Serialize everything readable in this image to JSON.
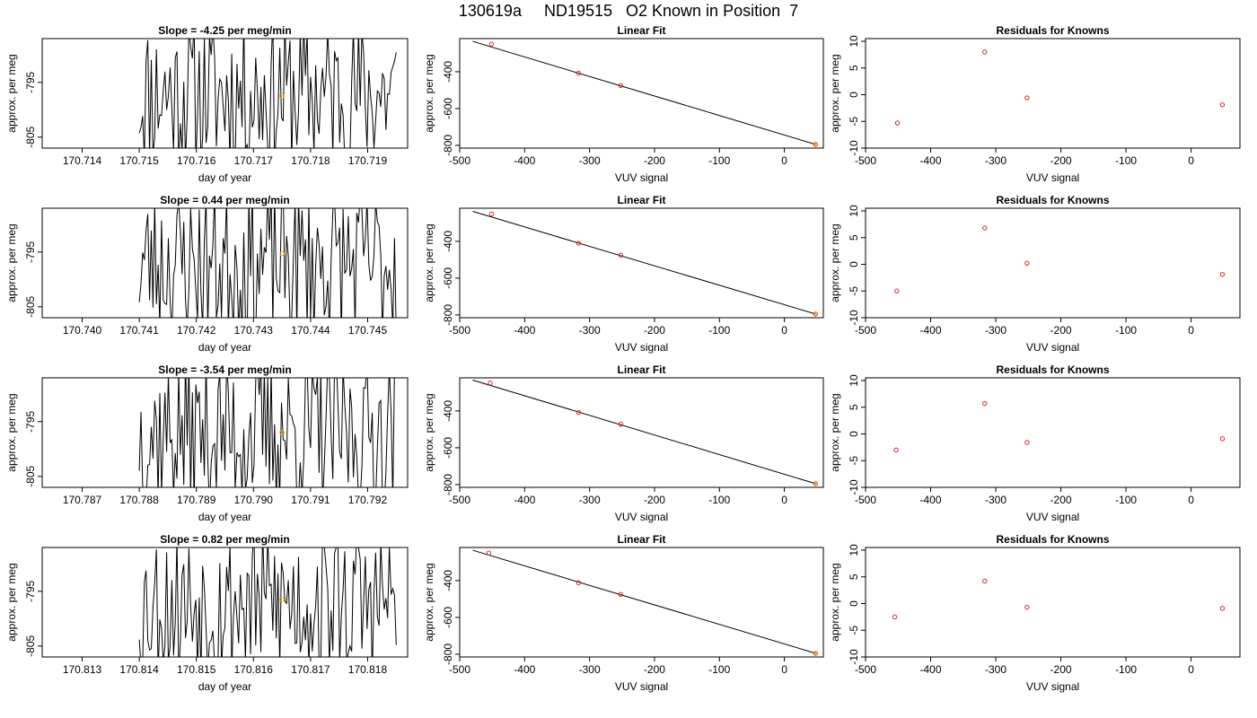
{
  "figure": {
    "title": "130619a     ND19515   O2 Known in Position  7"
  },
  "colors": {
    "trace": "#000000",
    "sample_point": "#ffa500",
    "known_point": "#d62728",
    "fit_line": "#000000"
  },
  "chart_data": [
    {
      "type": "line",
      "title": "Slope =  -4.25  per meg/min",
      "xlabel": "day of year",
      "ylabel": "approx. per meg",
      "xlim": [
        170.7133,
        170.7197
      ],
      "ylim": [
        -807,
        -787
      ],
      "xticks": [
        "170.714",
        "170.715",
        "170.716",
        "170.717",
        "170.718",
        "170.719"
      ],
      "yticks": [
        "-795",
        "-805"
      ],
      "trace_range": [
        170.715,
        170.7195
      ],
      "trace_seed": 11,
      "highlight_point": {
        "x": 170.7175,
        "y": -797.5
      }
    },
    {
      "type": "scatter",
      "title": "Linear Fit",
      "xlabel": "VUV signal",
      "ylabel": "approx. per meg",
      "xlim": [
        -500,
        60
      ],
      "ylim": [
        -815,
        -220
      ],
      "xticks": [
        "-500",
        "-400",
        "-300",
        "-200",
        "-100",
        "0"
      ],
      "yticks": [
        "-400",
        "-600",
        "-800"
      ],
      "points": [
        {
          "x": -451,
          "y": -250
        },
        {
          "x": -317,
          "y": -408
        },
        {
          "x": -252,
          "y": -475
        },
        {
          "x": 48,
          "y": -795
        }
      ],
      "fit": {
        "x": [
          -480,
          48
        ],
        "y": [
          -235,
          -795
        ]
      }
    },
    {
      "type": "scatter",
      "title": "Residuals for Knowns",
      "xlabel": "VUV signal",
      "ylabel": "approx. per meg",
      "xlim": [
        -500,
        75
      ],
      "ylim": [
        -10,
        10.5
      ],
      "xticks": [
        "-500",
        "-400",
        "-300",
        "-200",
        "-100",
        "0"
      ],
      "yticks": [
        "10",
        "5",
        "0",
        "-5",
        "-10"
      ],
      "points": [
        {
          "x": -451,
          "y": -5.3
        },
        {
          "x": -317,
          "y": 8.0
        },
        {
          "x": -252,
          "y": -0.6
        },
        {
          "x": 48,
          "y": -1.9
        }
      ]
    },
    {
      "type": "line",
      "title": "Slope =  0.44  per meg/min",
      "xlabel": "day of year",
      "ylabel": "approx. per meg",
      "xlim": [
        170.7393,
        170.7457
      ],
      "ylim": [
        -807,
        -787
      ],
      "xticks": [
        "170.740",
        "170.741",
        "170.742",
        "170.743",
        "170.744",
        "170.745"
      ],
      "yticks": [
        "-795",
        "-805"
      ],
      "trace_range": [
        170.741,
        170.7455
      ],
      "trace_seed": 23,
      "highlight_point": {
        "x": 170.7435,
        "y": -795.3
      }
    },
    {
      "type": "scatter",
      "title": "Linear Fit",
      "xlabel": "VUV signal",
      "ylabel": "approx. per meg",
      "xlim": [
        -500,
        60
      ],
      "ylim": [
        -815,
        -220
      ],
      "xticks": [
        "-500",
        "-400",
        "-300",
        "-200",
        "-100",
        "0"
      ],
      "yticks": [
        "-400",
        "-600",
        "-800"
      ],
      "points": [
        {
          "x": -451,
          "y": -252
        },
        {
          "x": -317,
          "y": -410
        },
        {
          "x": -252,
          "y": -475
        },
        {
          "x": 48,
          "y": -795
        }
      ],
      "fit": {
        "x": [
          -480,
          48
        ],
        "y": [
          -237,
          -795
        ]
      }
    },
    {
      "type": "scatter",
      "title": "Residuals for Knowns",
      "xlabel": "VUV signal",
      "ylabel": "approx. per meg",
      "xlim": [
        -500,
        75
      ],
      "ylim": [
        -10,
        10.5
      ],
      "xticks": [
        "-500",
        "-400",
        "-300",
        "-200",
        "-100",
        "0"
      ],
      "yticks": [
        "10",
        "5",
        "0",
        "-5",
        "-10"
      ],
      "points": [
        {
          "x": -452,
          "y": -5.0
        },
        {
          "x": -317,
          "y": 6.8
        },
        {
          "x": -252,
          "y": 0.2
        },
        {
          "x": 48,
          "y": -1.9
        }
      ]
    },
    {
      "type": "line",
      "title": "Slope =  -3.54  per meg/min",
      "xlabel": "day of year",
      "ylabel": "approx. per meg",
      "xlim": [
        170.7863,
        170.7927
      ],
      "ylim": [
        -807,
        -787
      ],
      "xticks": [
        "170.787",
        "170.788",
        "170.789",
        "170.790",
        "170.791",
        "170.792"
      ],
      "yticks": [
        "-795",
        "-805"
      ],
      "trace_range": [
        170.788,
        170.7925
      ],
      "trace_seed": 37,
      "highlight_point": {
        "x": 170.7905,
        "y": -797.0
      }
    },
    {
      "type": "scatter",
      "title": "Linear Fit",
      "xlabel": "VUV signal",
      "ylabel": "approx. per meg",
      "xlim": [
        -500,
        60
      ],
      "ylim": [
        -815,
        -220
      ],
      "xticks": [
        "-500",
        "-400",
        "-300",
        "-200",
        "-100",
        "0"
      ],
      "yticks": [
        "-400",
        "-600",
        "-800"
      ],
      "points": [
        {
          "x": -453,
          "y": -248
        },
        {
          "x": -317,
          "y": -408
        },
        {
          "x": -252,
          "y": -472
        },
        {
          "x": 48,
          "y": -795
        }
      ],
      "fit": {
        "x": [
          -480,
          48
        ],
        "y": [
          -232,
          -795
        ]
      }
    },
    {
      "type": "scatter",
      "title": "Residuals for Knowns",
      "xlabel": "VUV signal",
      "ylabel": "approx. per meg",
      "xlim": [
        -500,
        75
      ],
      "ylim": [
        -10,
        10.5
      ],
      "xticks": [
        "-500",
        "-400",
        "-300",
        "-200",
        "-100",
        "0"
      ],
      "yticks": [
        "10",
        "5",
        "0",
        "-5",
        "-10"
      ],
      "points": [
        {
          "x": -453,
          "y": -3.0
        },
        {
          "x": -317,
          "y": 5.7
        },
        {
          "x": -252,
          "y": -1.6
        },
        {
          "x": 48,
          "y": -0.9
        }
      ]
    },
    {
      "type": "line",
      "title": "Slope =  0.82  per meg/min",
      "xlabel": "day of year",
      "ylabel": "approx. per meg",
      "xlim": [
        170.8123,
        170.8187
      ],
      "ylim": [
        -807,
        -787
      ],
      "xticks": [
        "170.813",
        "170.814",
        "170.815",
        "170.816",
        "170.817",
        "170.818"
      ],
      "yticks": [
        "-795",
        "-805"
      ],
      "trace_range": [
        170.814,
        170.8185
      ],
      "trace_seed": 53,
      "highlight_point": {
        "x": 170.8165,
        "y": -796.5
      }
    },
    {
      "type": "scatter",
      "title": "Linear Fit",
      "xlabel": "VUV signal",
      "ylabel": "approx. per meg",
      "xlim": [
        -500,
        60
      ],
      "ylim": [
        -815,
        -220
      ],
      "xticks": [
        "-500",
        "-400",
        "-300",
        "-200",
        "-100",
        "0"
      ],
      "yticks": [
        "-400",
        "-600",
        "-800"
      ],
      "points": [
        {
          "x": -455,
          "y": -250
        },
        {
          "x": -317,
          "y": -412
        },
        {
          "x": -252,
          "y": -475
        },
        {
          "x": 48,
          "y": -795
        }
      ],
      "fit": {
        "x": [
          -480,
          48
        ],
        "y": [
          -235,
          -795
        ]
      }
    },
    {
      "type": "scatter",
      "title": "Residuals for Knowns",
      "xlabel": "VUV signal",
      "ylabel": "approx. per meg",
      "xlim": [
        -500,
        75
      ],
      "ylim": [
        -10,
        10.5
      ],
      "xticks": [
        "-500",
        "-400",
        "-300",
        "-200",
        "-100",
        "0"
      ],
      "yticks": [
        "10",
        "5",
        "0",
        "-5",
        "-10"
      ],
      "points": [
        {
          "x": -455,
          "y": -2.5
        },
        {
          "x": -317,
          "y": 4.2
        },
        {
          "x": -252,
          "y": -0.7
        },
        {
          "x": 48,
          "y": -0.9
        }
      ]
    }
  ]
}
